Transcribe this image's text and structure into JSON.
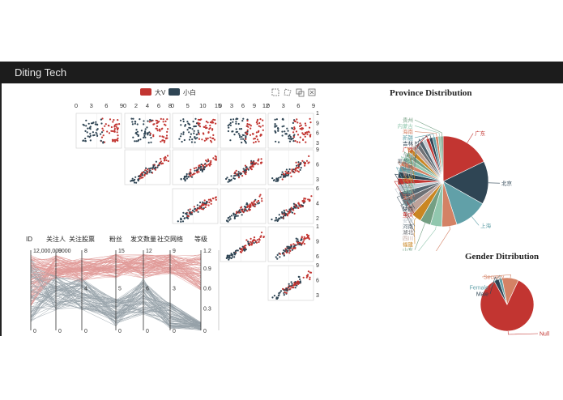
{
  "app": {
    "title": "Diting Tech"
  },
  "legend": {
    "items": [
      {
        "label": "大V",
        "color": "#c23531"
      },
      {
        "label": "小白",
        "color": "#2f4554"
      }
    ]
  },
  "toolbox": {
    "icons": [
      "rect-select-icon",
      "polygon-select-icon",
      "keep-selection-icon",
      "clear-selection-icon"
    ]
  },
  "scatter_matrix": {
    "top_axis_ticks": [
      [
        "0",
        "3",
        "6",
        "9"
      ],
      [
        "0",
        "2",
        "4",
        "6",
        "8"
      ],
      [
        "0",
        "5",
        "10",
        "15"
      ],
      [
        "0",
        "3",
        "6",
        "9",
        "12"
      ],
      [
        "0",
        "3",
        "6",
        "9"
      ]
    ],
    "right_axis_ticks": [
      [
        "1",
        "9",
        "6",
        "3"
      ],
      [
        "9",
        "6",
        "3"
      ],
      [
        "6",
        "4",
        "2"
      ],
      [
        "1",
        "9",
        "6"
      ],
      [
        "9",
        "6",
        "3"
      ]
    ]
  },
  "parallel": {
    "axes": [
      "ID",
      "关注人",
      "关注股票",
      "粉丝",
      "发文数量",
      "社交网络",
      "等级"
    ],
    "top_values": [
      "12,000,000",
      "9000",
      "8",
      "15",
      "12",
      "9",
      "1.2"
    ],
    "axis_ticks": [
      {
        "axis": "ID",
        "ticks": [
          "0"
        ]
      },
      {
        "axis": "关注人",
        "ticks": [
          "0"
        ]
      },
      {
        "axis": "关注股票",
        "ticks": [
          "4",
          "0"
        ]
      },
      {
        "axis": "粉丝",
        "ticks": [
          "5",
          "0"
        ]
      },
      {
        "axis": "发文数量",
        "ticks": [
          "6",
          "0"
        ]
      },
      {
        "axis": "社交网络",
        "ticks": [
          "3",
          "0"
        ]
      },
      {
        "axis": "等级",
        "ticks": [
          "0.9",
          "0.6",
          "0.3",
          "0"
        ]
      }
    ]
  },
  "chart_data": [
    {
      "type": "pie",
      "title": "Province Distribution",
      "labels": [
        "广东",
        "北京",
        "上海",
        "江苏",
        "浙江",
        "山东",
        "福建",
        "四川",
        "湖北",
        "河南",
        "安徽",
        "重庆",
        "陕西",
        "辽宁",
        "天津",
        "湖南",
        "江西",
        "云南",
        "香港",
        "山西",
        "黑龙江",
        "甘肃",
        "广西",
        "吉林",
        "新疆",
        "海南",
        "内蒙古",
        "贵州"
      ],
      "values": [
        15,
        13,
        10,
        4.5,
        3.5,
        3.2,
        3,
        2.8,
        2.6,
        2.4,
        2.2,
        2,
        2,
        1.8,
        1.6,
        1.6,
        1.5,
        1.4,
        1.4,
        1.3,
        1.2,
        1.1,
        1,
        1,
        0.9,
        0.8,
        0.8,
        0.7
      ]
    },
    {
      "type": "pie",
      "title": "Gender Ditribution",
      "labels": [
        "Null",
        "Male",
        "Female",
        "Secrecy"
      ],
      "values": [
        85,
        3,
        2,
        10
      ]
    }
  ],
  "colors": {
    "palette": [
      "#c23531",
      "#2f4554",
      "#61a0a8",
      "#d48265",
      "#91c7ae",
      "#749f83",
      "#ca8622",
      "#bda29a",
      "#6e7074",
      "#546570",
      "#c4ccd3"
    ],
    "red": "#c23531",
    "navy": "#2f4554"
  }
}
